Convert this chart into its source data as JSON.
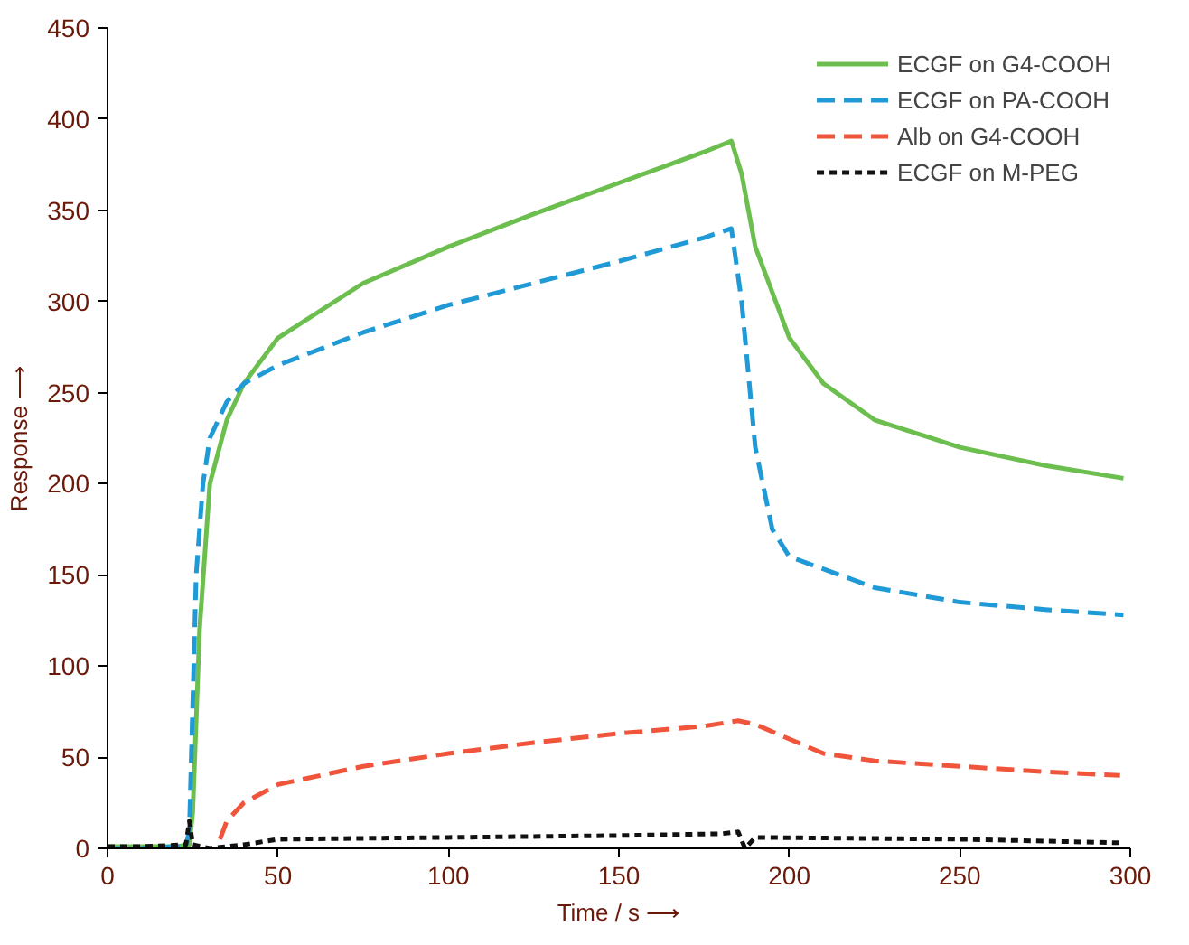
{
  "chart_data": {
    "type": "line",
    "xlabel": "Time / s ⟶",
    "ylabel": "Response ⟶",
    "xlim": [
      0,
      300
    ],
    "ylim": [
      0,
      450
    ],
    "xticks": [
      0,
      50,
      100,
      150,
      200,
      250,
      300
    ],
    "yticks": [
      0,
      50,
      100,
      150,
      200,
      250,
      300,
      350,
      400,
      450
    ],
    "grid": false,
    "legend": "top right",
    "marker": "none",
    "series": [
      {
        "name": "ECGF on G4-COOH",
        "color": "#6cbf4f",
        "line_style": "solid",
        "x": [
          0,
          10,
          20,
          24,
          25,
          27,
          30,
          35,
          40,
          50,
          75,
          100,
          125,
          150,
          175,
          183,
          186,
          190,
          200,
          210,
          225,
          250,
          275,
          298
        ],
        "values": [
          1,
          1,
          1,
          2,
          20,
          120,
          200,
          235,
          255,
          280,
          310,
          330,
          348,
          365,
          382,
          388,
          370,
          330,
          280,
          255,
          235,
          220,
          210,
          203
        ]
      },
      {
        "name": "ECGF on PA-COOH",
        "color": "#1f9ad6",
        "line_style": "dashed",
        "x": [
          0,
          10,
          20,
          23,
          24,
          26,
          28,
          30,
          35,
          40,
          50,
          75,
          100,
          125,
          150,
          175,
          183,
          186,
          190,
          195,
          200,
          225,
          250,
          275,
          298
        ],
        "values": [
          0,
          0,
          1,
          1,
          10,
          150,
          200,
          225,
          245,
          255,
          265,
          283,
          298,
          310,
          322,
          335,
          340,
          300,
          220,
          175,
          160,
          143,
          135,
          131,
          128
        ]
      },
      {
        "name": "Alb on G4-COOH",
        "color": "#f0543a",
        "line_style": "dashed",
        "x": [
          33,
          35,
          40,
          50,
          75,
          100,
          125,
          150,
          175,
          185,
          190,
          200,
          210,
          225,
          250,
          275,
          297
        ],
        "values": [
          5,
          15,
          25,
          35,
          45,
          52,
          58,
          63,
          67,
          70,
          68,
          60,
          52,
          48,
          45,
          42,
          40
        ]
      },
      {
        "name": "ECGF on M-PEG",
        "color": "#111111",
        "line_style": "dotted",
        "x": [
          0,
          10,
          23,
          24,
          25,
          30,
          40,
          50,
          100,
          150,
          180,
          185,
          187,
          190,
          250,
          298
        ],
        "values": [
          1,
          1,
          2,
          15,
          2,
          0,
          2,
          5,
          6,
          7,
          8,
          9,
          0,
          6,
          5,
          3
        ]
      }
    ]
  }
}
